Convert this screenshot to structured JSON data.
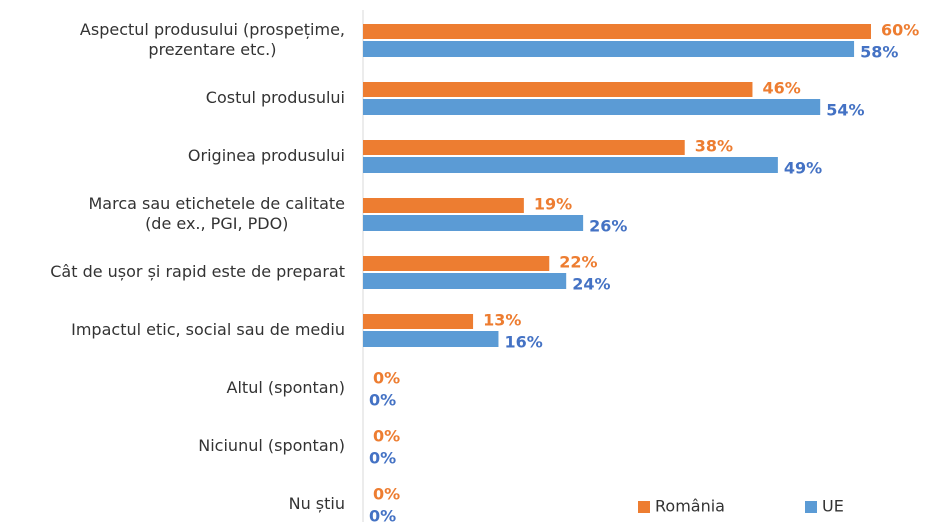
{
  "chart_data": {
    "type": "bar",
    "orientation": "horizontal",
    "categories": [
      "Aspectul produsului (prospețime,\nprezentare etc.)",
      "Costul produsului",
      "Originea produsului",
      "Marca sau etichetele de calitate\n(de ex., PGI, PDO)",
      "Cât de ușor și rapid este de preparat",
      "Impactul etic, social sau de mediu",
      "Altul (spontan)",
      "Niciunul (spontan)",
      "Nu știu"
    ],
    "series": [
      {
        "name": "România",
        "color": "#ed7d31",
        "label_color": "#ed7d31",
        "values": [
          60,
          46,
          38,
          19,
          22,
          13,
          0,
          0,
          0
        ],
        "value_labels": [
          "60%",
          "46%",
          "38%",
          "19%",
          "22%",
          "13%",
          "0%",
          "0%",
          "0%"
        ]
      },
      {
        "name": "UE",
        "color": "#5b9bd5",
        "label_color": "#4472c4",
        "values": [
          58,
          54,
          49,
          26,
          24,
          16,
          0,
          0,
          0
        ],
        "value_labels": [
          "58%",
          "54%",
          "49%",
          "26%",
          "24%",
          "16%",
          "0%",
          "0%",
          "0%"
        ]
      }
    ],
    "xlim": [
      0,
      60
    ],
    "legend": "bottom-right"
  }
}
